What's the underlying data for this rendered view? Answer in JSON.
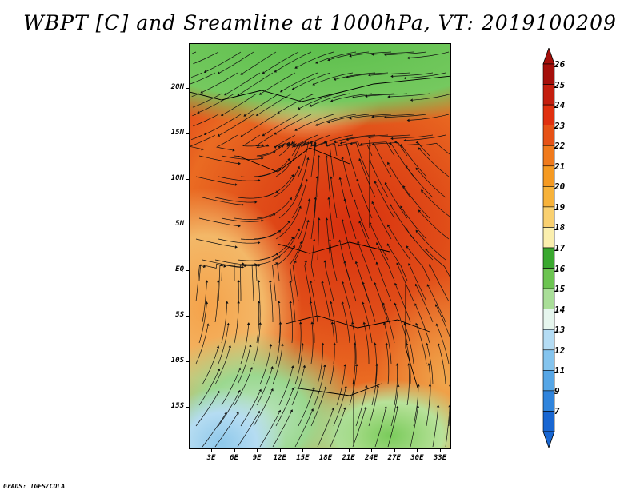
{
  "title": "WBPT [C] and Sreamline at 1000hPa, VT: 2019100209",
  "footer": "GrADS: IGES/COLA",
  "lat_labels": [
    "20N",
    "15N",
    "10N",
    "5N",
    "EQ",
    "5S",
    "10S",
    "15S"
  ],
  "lon_labels": [
    "3E",
    "6E",
    "9E",
    "12E",
    "15E",
    "18E",
    "21E",
    "24E",
    "27E",
    "30E",
    "33E"
  ],
  "colorbar": {
    "labels": [
      "26",
      "25",
      "24",
      "23",
      "22",
      "21",
      "20",
      "19",
      "18",
      "17",
      "16",
      "15",
      "14",
      "13",
      "12",
      "11",
      "9",
      "7"
    ],
    "colors": [
      "#a50f0a",
      "#c41e0e",
      "#e0300f",
      "#e65216",
      "#f07a1c",
      "#f59a22",
      "#f7b23a",
      "#f9d070",
      "#fbefae",
      "#3aa82f",
      "#6cc451",
      "#a9de98",
      "#e6f6ee",
      "#b4dcf4",
      "#84c4ee",
      "#56a6e6",
      "#2f84dc",
      "#1866d2"
    ]
  }
}
